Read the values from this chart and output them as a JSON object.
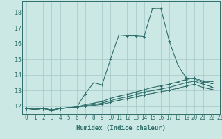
{
  "background_color": "#cce8e4",
  "grid_color": "#aacccc",
  "line_color": "#2e6e6a",
  "xlabel": "Humidex (Indice chaleur)",
  "xlim": [
    -0.5,
    23
  ],
  "ylim": [
    11.5,
    18.7
  ],
  "yticks": [
    12,
    13,
    14,
    15,
    16,
    17,
    18
  ],
  "xticks": [
    0,
    1,
    2,
    3,
    4,
    5,
    6,
    7,
    8,
    9,
    10,
    11,
    12,
    13,
    14,
    15,
    16,
    17,
    18,
    19,
    20,
    21,
    22,
    23
  ],
  "series": [
    [
      11.85,
      11.8,
      11.85,
      11.75,
      11.85,
      11.9,
      11.95,
      12.8,
      13.5,
      13.35,
      15.0,
      16.55,
      16.5,
      16.5,
      16.45,
      18.25,
      18.25,
      16.15,
      14.65,
      13.8,
      13.75,
      13.5,
      13.6
    ],
    [
      11.85,
      11.8,
      11.85,
      11.75,
      11.85,
      11.9,
      11.95,
      12.1,
      12.2,
      12.3,
      12.5,
      12.65,
      12.75,
      12.9,
      13.05,
      13.2,
      13.3,
      13.4,
      13.55,
      13.7,
      13.8,
      13.6,
      13.45
    ],
    [
      11.85,
      11.8,
      11.85,
      11.75,
      11.85,
      11.9,
      11.95,
      12.05,
      12.1,
      12.2,
      12.35,
      12.5,
      12.6,
      12.75,
      12.9,
      13.0,
      13.1,
      13.2,
      13.35,
      13.5,
      13.6,
      13.4,
      13.25
    ],
    [
      11.85,
      11.8,
      11.85,
      11.75,
      11.85,
      11.9,
      11.95,
      12.0,
      12.05,
      12.12,
      12.25,
      12.38,
      12.48,
      12.6,
      12.72,
      12.82,
      12.92,
      13.02,
      13.15,
      13.28,
      13.4,
      13.2,
      13.08
    ]
  ],
  "marker": "+",
  "marker_size": 3,
  "linewidth": 0.8,
  "tick_fontsize": 5.5,
  "xlabel_fontsize": 6.5
}
